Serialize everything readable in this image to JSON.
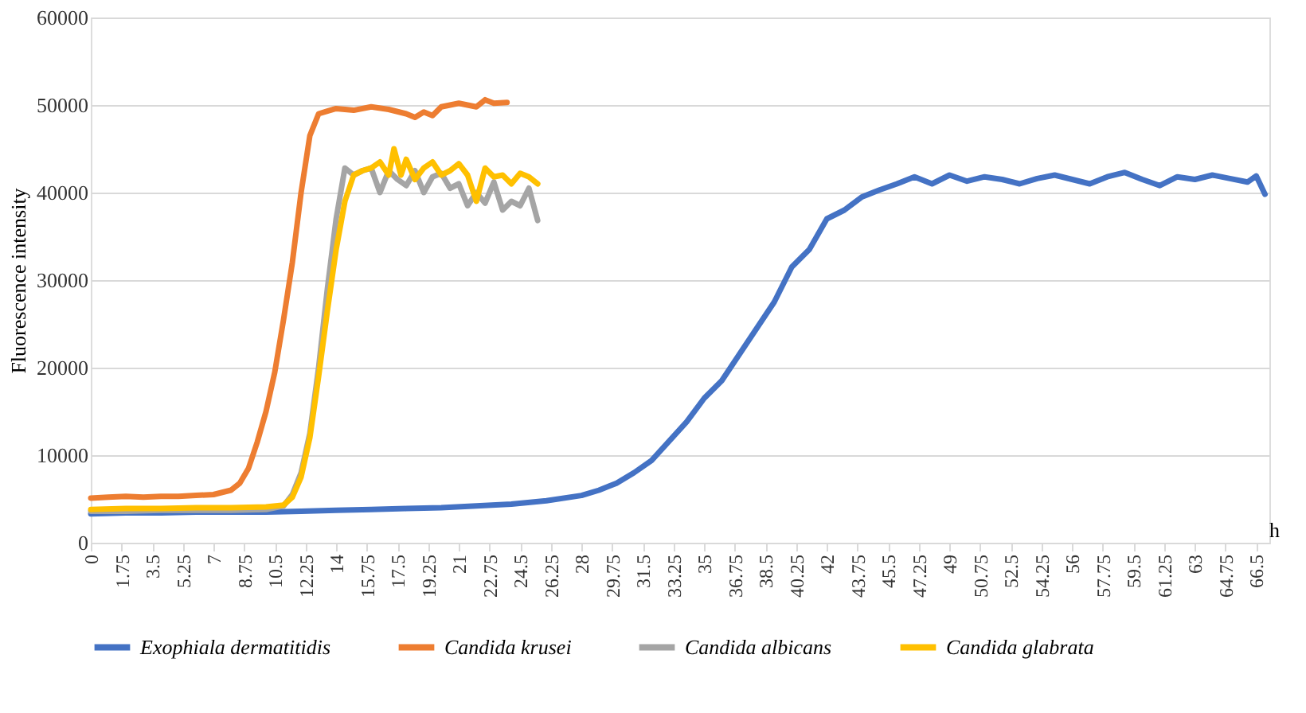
{
  "chart_data": {
    "type": "line",
    "xlabel": "h",
    "ylabel": "Fluorescence intensity",
    "xlim": [
      0,
      67.25
    ],
    "xticks": [
      0,
      1.75,
      3.5,
      5.25,
      7,
      8.75,
      10.5,
      12.25,
      14,
      15.75,
      17.5,
      19.25,
      21,
      22.75,
      24.5,
      26.25,
      28,
      29.75,
      31.5,
      33.25,
      35,
      36.75,
      38.5,
      40.25,
      42,
      43.75,
      45.5,
      47.25,
      49,
      50.75,
      52.5,
      54.25,
      56,
      57.75,
      59.5,
      61.25,
      63,
      64.75,
      66.5
    ],
    "ylim": [
      0,
      60000
    ],
    "yticks": [
      0,
      10000,
      20000,
      30000,
      40000,
      50000,
      60000
    ],
    "grid": "y",
    "legend": "bottom",
    "marker": "none",
    "line_style": "solid",
    "series": [
      {
        "name": "Exophiala dermatitidis",
        "color": "#4472c4",
        "x": [
          0,
          2,
          4,
          6,
          8,
          10,
          12,
          14,
          16,
          18,
          20,
          22,
          24,
          26,
          28,
          29,
          30,
          31,
          32,
          33,
          34,
          35,
          36,
          37,
          38,
          39,
          40,
          41,
          42,
          43,
          44,
          45,
          46,
          47,
          48,
          49,
          50,
          51,
          52,
          53,
          54,
          55,
          56,
          57,
          58,
          59,
          60,
          61,
          62,
          63,
          64,
          65,
          66,
          66.5,
          67
        ],
        "values": [
          3300,
          3400,
          3400,
          3500,
          3500,
          3500,
          3600,
          3700,
          3800,
          3900,
          4000,
          4200,
          4400,
          4800,
          5400,
          6000,
          6800,
          8000,
          9400,
          11600,
          13800,
          16500,
          18500,
          21500,
          24500,
          27500,
          31500,
          33500,
          37000,
          38000,
          39500,
          40300,
          41000,
          41800,
          41000,
          42000,
          41300,
          41800,
          41500,
          41000,
          41600,
          42000,
          41500,
          41000,
          41800,
          42300,
          41500,
          40800,
          41800,
          41500,
          42000,
          41600,
          41200,
          41900,
          39800
        ]
      },
      {
        "name": "Candida krusei",
        "color": "#ed7d31",
        "x": [
          0,
          1,
          2,
          3,
          4,
          5,
          6,
          7,
          8,
          8.5,
          9,
          9.5,
          10,
          10.5,
          11,
          11.5,
          12,
          12.5,
          13,
          13.5,
          14,
          15,
          16,
          17,
          18,
          18.5,
          19,
          19.5,
          20,
          21,
          22,
          22.5,
          23,
          23.75
        ],
        "values": [
          5100,
          5200,
          5300,
          5200,
          5300,
          5300,
          5400,
          5500,
          6000,
          6800,
          8500,
          11500,
          15000,
          19500,
          25500,
          32000,
          40000,
          46500,
          49000,
          49300,
          49600,
          49400,
          49800,
          49500,
          49000,
          48600,
          49200,
          48800,
          49800,
          50200,
          49800,
          50600,
          50200,
          50300
        ]
      },
      {
        "name": "Candida albicans",
        "color": "#a5a5a5",
        "x": [
          0,
          2,
          4,
          6,
          8,
          10,
          11,
          11.5,
          12,
          12.5,
          13,
          13.5,
          14,
          14.5,
          15,
          15.5,
          16,
          16.5,
          17,
          17.5,
          18,
          18.5,
          19,
          19.5,
          20,
          20.5,
          21,
          21.5,
          22,
          22.5,
          23,
          23.5,
          24,
          24.5,
          25,
          25.5
        ],
        "values": [
          3600,
          3600,
          3700,
          3700,
          3700,
          3800,
          4200,
          5500,
          8000,
          12500,
          20000,
          29000,
          37000,
          42800,
          42000,
          42500,
          42800,
          40000,
          42500,
          41500,
          40800,
          42500,
          40000,
          41800,
          42200,
          40500,
          41000,
          38500,
          40000,
          38800,
          41200,
          38000,
          39000,
          38500,
          40500,
          36800
        ]
      },
      {
        "name": "Candida glabrata",
        "color": "#ffc000",
        "x": [
          0,
          2,
          4,
          6,
          8,
          10,
          11,
          11.5,
          12,
          12.5,
          13,
          13.5,
          14,
          14.5,
          15,
          15.5,
          16,
          16.5,
          17,
          17.3,
          17.7,
          18,
          18.5,
          19,
          19.5,
          20,
          20.5,
          21,
          21.5,
          22,
          22.5,
          23,
          23.5,
          24,
          24.5,
          25,
          25.5
        ],
        "values": [
          3800,
          3900,
          3900,
          4000,
          4000,
          4100,
          4300,
          5200,
          7500,
          12000,
          19000,
          26500,
          33500,
          39000,
          42000,
          42500,
          42800,
          43500,
          42000,
          45000,
          42000,
          43800,
          41500,
          42800,
          43500,
          42000,
          42500,
          43300,
          42000,
          39000,
          42800,
          41800,
          42000,
          41000,
          42200,
          41800,
          41000
        ]
      }
    ]
  }
}
